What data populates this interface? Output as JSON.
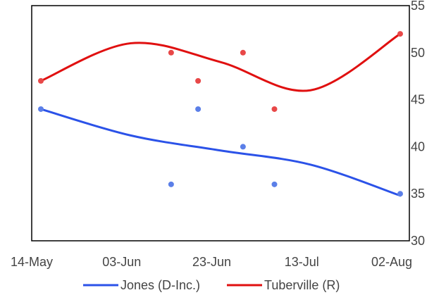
{
  "chart_data": {
    "type": "scatter",
    "title": "",
    "xlabel": "",
    "ylabel": "",
    "x_ticks": [
      "14-May",
      "03-Jun",
      "23-Jun",
      "13-Jul",
      "02-Aug"
    ],
    "xlim": [
      "2022-05-14",
      "2022-08-02"
    ],
    "ylim": [
      30,
      55
    ],
    "y_ticks": [
      "30",
      "35",
      "40",
      "45",
      "50",
      "55"
    ],
    "y_axis_position": "right",
    "grid": false,
    "legend_position": "bottom",
    "series": [
      {
        "name": "Jones (D-Inc.)",
        "color": "#2b52e8",
        "point_color": "#5b7fe8",
        "points": [
          {
            "x": "2022-05-14",
            "y": 44
          },
          {
            "x": "2022-06-12",
            "y": 36
          },
          {
            "x": "2022-06-18",
            "y": 44
          },
          {
            "x": "2022-06-28",
            "y": 40
          },
          {
            "x": "2022-07-05",
            "y": 36
          },
          {
            "x": "2022-08-02",
            "y": 35
          }
        ],
        "trend": [
          {
            "x": "2022-05-14",
            "y": 44
          },
          {
            "x": "2022-06-03",
            "y": 41.2
          },
          {
            "x": "2022-06-23",
            "y": 39.6
          },
          {
            "x": "2022-07-13",
            "y": 38.1
          },
          {
            "x": "2022-08-02",
            "y": 34.8
          }
        ]
      },
      {
        "name": "Tuberville (R)",
        "color": "#e01010",
        "point_color": "#e84848",
        "points": [
          {
            "x": "2022-05-14",
            "y": 47
          },
          {
            "x": "2022-06-12",
            "y": 50
          },
          {
            "x": "2022-06-18",
            "y": 47
          },
          {
            "x": "2022-06-28",
            "y": 50
          },
          {
            "x": "2022-07-05",
            "y": 44
          },
          {
            "x": "2022-08-02",
            "y": 52
          }
        ],
        "trend": [
          {
            "x": "2022-05-14",
            "y": 47
          },
          {
            "x": "2022-06-03",
            "y": 51
          },
          {
            "x": "2022-06-23",
            "y": 49
          },
          {
            "x": "2022-07-13",
            "y": 46
          },
          {
            "x": "2022-08-02",
            "y": 52
          }
        ]
      }
    ]
  }
}
